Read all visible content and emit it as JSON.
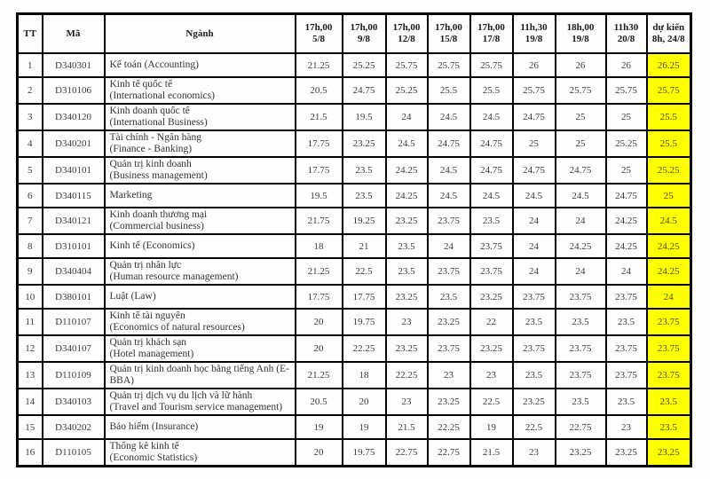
{
  "table": {
    "tt_label": "TT",
    "code_label": "Mã",
    "major_label": "Ngành",
    "highlight_color": "#ffff00",
    "score_columns": [
      {
        "time": "17h,00",
        "date": "5/8"
      },
      {
        "time": "17h,00",
        "date": "9/8"
      },
      {
        "time": "17h,00",
        "date": "12/8"
      },
      {
        "time": "17h,00",
        "date": "15/8"
      },
      {
        "time": "17h,00",
        "date": "17/8"
      },
      {
        "time": "11h,30",
        "date": "19/8"
      },
      {
        "time": "18h,00",
        "date": "19/8"
      },
      {
        "time": "11h30",
        "date": "20/8"
      },
      {
        "time": "dự kiến",
        "date": "8h, 24/8"
      }
    ],
    "rows": [
      {
        "tt": "1",
        "code": "D340301",
        "name_vi": "Kế toán",
        "name_en": "(Accounting)",
        "wrap": false,
        "scores": [
          "21.25",
          "25.25",
          "25.75",
          "25.75",
          "25.75",
          "26",
          "26",
          "26",
          "26.25"
        ]
      },
      {
        "tt": "2",
        "code": "D310106",
        "name_vi": "Kinh tế quốc tế",
        "name_en": "(International economics)",
        "wrap": true,
        "scores": [
          "20.5",
          "24.75",
          "25.25",
          "25.5",
          "25.5",
          "25.75",
          "25.75",
          "25.75",
          "25.75"
        ]
      },
      {
        "tt": "3",
        "code": "D340120",
        "name_vi": "Kinh doanh quốc tế",
        "name_en": "(International Business)",
        "wrap": true,
        "scores": [
          "21.5",
          "19.5",
          "24",
          "24.5",
          "24.5",
          "24.75",
          "25",
          "25",
          "25.5"
        ]
      },
      {
        "tt": "4",
        "code": "D340201",
        "name_vi": "Tài chính - Ngân hàng",
        "name_en": "(Finance - Banking)",
        "wrap": true,
        "scores": [
          "17.75",
          "23.25",
          "24.5",
          "24.75",
          "24.75",
          "25",
          "25",
          "25.25",
          "25.5"
        ]
      },
      {
        "tt": "5",
        "code": "D340101",
        "name_vi": "Quản trị kinh doanh",
        "name_en": "(Business management)",
        "wrap": true,
        "scores": [
          "17.75",
          "23.5",
          "24.25",
          "24.5",
          "24.75",
          "24.75",
          "24.75",
          "25",
          "25.25"
        ]
      },
      {
        "tt": "6",
        "code": "D340115",
        "name_vi": "Marketing",
        "name_en": "",
        "wrap": false,
        "scores": [
          "19.5",
          "23.5",
          "24.25",
          "24.5",
          "24.5",
          "24.5",
          "24.5",
          "24.75",
          "25"
        ]
      },
      {
        "tt": "7",
        "code": "D340121",
        "name_vi": "Kinh doanh thương mại",
        "name_en": "(Commercial business)",
        "wrap": true,
        "scores": [
          "21.75",
          "19.25",
          "23.25",
          "23.75",
          "23.5",
          "24",
          "24",
          "24.25",
          "24.5"
        ]
      },
      {
        "tt": "8",
        "code": "D310101",
        "name_vi": "Kinh tế",
        "name_en": "(Economics)",
        "wrap": false,
        "scores": [
          "18",
          "21",
          "23.5",
          "24",
          "23.75",
          "24",
          "24.25",
          "24.25",
          "24.25"
        ]
      },
      {
        "tt": "9",
        "code": "D340404",
        "name_vi": "Quản trị nhân lực",
        "name_en": "(Human resource management)",
        "wrap": true,
        "scores": [
          "21.25",
          "22.5",
          "23.5",
          "23.75",
          "23.75",
          "24",
          "24",
          "24",
          "24.25"
        ]
      },
      {
        "tt": "10",
        "code": "D380101",
        "name_vi": "Luật",
        "name_en": "(Law)",
        "wrap": false,
        "scores": [
          "17.75",
          "17.75",
          "23.25",
          "23.5",
          "23.25",
          "23.75",
          "23.75",
          "23.75",
          "24"
        ]
      },
      {
        "tt": "11",
        "code": "D110107",
        "name_vi": "Kinh tế tài nguyên",
        "name_en": "(Economics of natural resources)",
        "wrap": true,
        "scores": [
          "20",
          "19.75",
          "23",
          "23.25",
          "22",
          "23.5",
          "23.5",
          "23.5",
          "23.75"
        ]
      },
      {
        "tt": "12",
        "code": "D340107",
        "name_vi": "Quản trị khách sạn",
        "name_en": "(Hotel management)",
        "wrap": true,
        "scores": [
          "20",
          "22.25",
          "23.25",
          "23.75",
          "23.25",
          "23.75",
          "23.75",
          "23.75",
          "23.75"
        ]
      },
      {
        "tt": "13",
        "code": "D110109",
        "name_vi": "Quản trị kinh doanh học bằng tiếng Anh (E-BBA)",
        "name_en": "",
        "wrap": false,
        "scores": [
          "21.25",
          "18",
          "22.25",
          "23",
          "23",
          "23.5",
          "23.75",
          "23.75",
          "23.75"
        ]
      },
      {
        "tt": "14",
        "code": "D340103",
        "name_vi": "Quản trị dịch vụ du lịch và lữ hành",
        "name_en": "(Travel and Tourism service management)",
        "wrap": true,
        "scores": [
          "20.5",
          "20",
          "23",
          "23.25",
          "22.5",
          "23.25",
          "23.5",
          "23.5",
          "23.5"
        ]
      },
      {
        "tt": "15",
        "code": "D340202",
        "name_vi": "Bảo hiểm",
        "name_en": "(Insurance)",
        "wrap": false,
        "scores": [
          "19",
          "19",
          "21.5",
          "22.25",
          "19",
          "22.5",
          "22.75",
          "23",
          "23.5"
        ]
      },
      {
        "tt": "16",
        "code": "D110105",
        "name_vi": "Thống kê kinh tế",
        "name_en": "(Economic Statistics)",
        "wrap": true,
        "scores": [
          "20",
          "19.75",
          "22.75",
          "22.75",
          "21.5",
          "23",
          "23.25",
          "23.25",
          "23.25"
        ]
      }
    ]
  }
}
